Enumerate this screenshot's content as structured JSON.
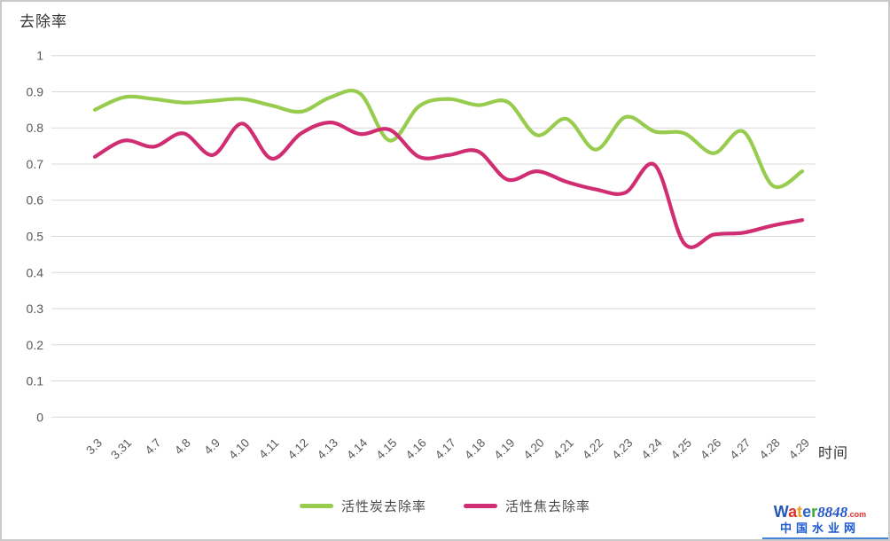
{
  "chart": {
    "y_axis_title": "去除率",
    "x_axis_title": "时间",
    "background": "#ffffff",
    "gridline_color": "#d9d9d9",
    "tick_text_color": "#595959",
    "y_tick_labels": [
      "1",
      "0.9",
      "0.8",
      "0.7",
      "0.6",
      "0.5",
      "0.4",
      "0.3",
      "0.2",
      "0.1",
      "0"
    ]
  },
  "chart_data": {
    "type": "line",
    "smooth": true,
    "title": "",
    "xlabel": "时间",
    "ylabel": "去除率",
    "ylim": [
      0,
      1
    ],
    "y_tick_step": 0.1,
    "grid": "horizontal",
    "legend_position": "bottom",
    "categories": [
      "3.3",
      "3.31",
      "4.7",
      "4.8",
      "4.9",
      "4.10",
      "4.11",
      "4.12",
      "4.13",
      "4.14",
      "4.15",
      "4.16",
      "4.17",
      "4.18",
      "4.19",
      "4.20",
      "4.21",
      "4.22",
      "4.23",
      "4.24",
      "4.25",
      "4.26",
      "4.27",
      "4.28",
      "4.29"
    ],
    "series": [
      {
        "name": "活性炭去除率",
        "color": "#97cc4f",
        "values": [
          0.85,
          0.885,
          0.88,
          0.87,
          0.875,
          0.88,
          0.862,
          0.845,
          0.885,
          0.895,
          0.765,
          0.86,
          0.88,
          0.863,
          0.872,
          0.78,
          0.825,
          0.74,
          0.83,
          0.79,
          0.785,
          0.73,
          0.79,
          0.64,
          0.68
        ]
      },
      {
        "name": "活性焦去除率",
        "color": "#d12d72",
        "values": [
          0.72,
          0.765,
          0.748,
          0.785,
          0.725,
          0.812,
          0.715,
          0.785,
          0.815,
          0.783,
          0.795,
          0.72,
          0.725,
          0.735,
          0.657,
          0.68,
          0.651,
          0.63,
          0.621,
          0.697,
          0.48,
          0.505,
          0.51,
          0.53,
          0.545
        ]
      }
    ]
  },
  "watermark": {
    "brand_letters": [
      {
        "ch": "W",
        "color": "#2456b4"
      },
      {
        "ch": "a",
        "color": "#e03128"
      },
      {
        "ch": "t",
        "color": "#f0a01e"
      },
      {
        "ch": "e",
        "color": "#2b66c2"
      },
      {
        "ch": "r",
        "color": "#3fa535"
      }
    ],
    "brand_number": "8848",
    "brand_number_color": "#2456c8",
    "brand_tld": ".com",
    "brand_tld_color": "#e03128",
    "site_name": "中国水业网",
    "site_name_color": "#1b5ad2",
    "underline_color": "#4485d8"
  }
}
